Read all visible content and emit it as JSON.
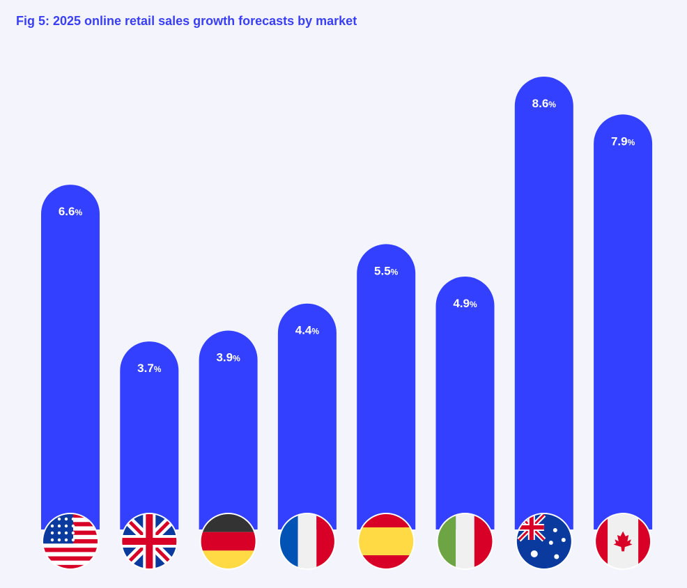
{
  "chart_data": {
    "type": "bar",
    "title": "Fig 5: 2025 online retail sales growth forecasts by market",
    "categories": [
      "United States",
      "United Kingdom",
      "Germany",
      "France",
      "Spain",
      "Italy",
      "Australia",
      "Canada"
    ],
    "values": [
      6.6,
      3.7,
      3.9,
      4.4,
      5.5,
      4.9,
      8.6,
      7.9
    ],
    "labels": [
      "6.6",
      "3.7",
      "3.9",
      "4.4",
      "5.5",
      "4.9",
      "8.6",
      "7.9"
    ],
    "unit": "%",
    "bar_color": "#3340ff",
    "title_color": "#3a3ff5",
    "background": "#f4f5fc",
    "ylim": [
      0,
      8.6
    ],
    "grid": false,
    "legend": "none"
  },
  "flags": [
    "us-flag-icon",
    "uk-flag-icon",
    "germany-flag-icon",
    "france-flag-icon",
    "spain-flag-icon",
    "italy-flag-icon",
    "australia-flag-icon",
    "canada-flag-icon"
  ]
}
